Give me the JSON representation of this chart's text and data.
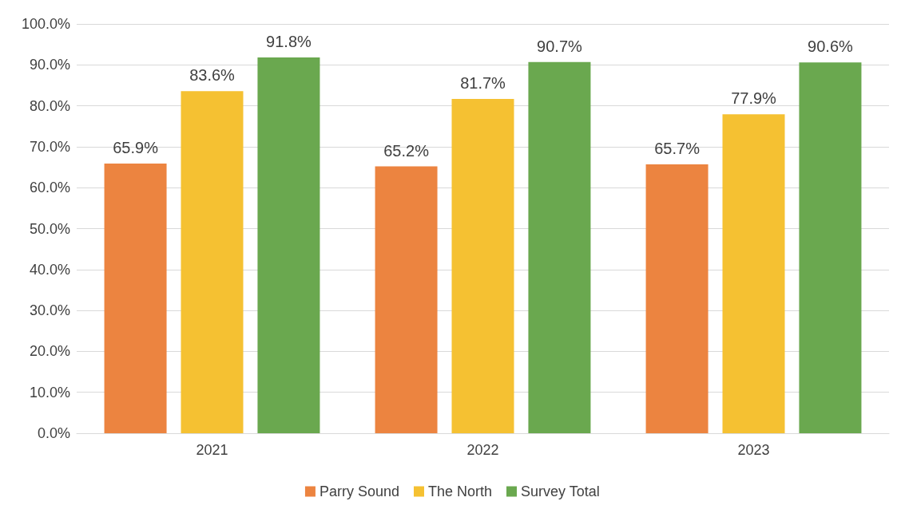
{
  "chart_data": {
    "type": "bar",
    "categories": [
      "2021",
      "2022",
      "2023"
    ],
    "series": [
      {
        "name": "Parry Sound",
        "color": "#ec8440",
        "values": [
          65.9,
          65.2,
          65.7
        ],
        "value_labels": [
          "65.9%",
          "65.2%",
          "65.7%"
        ]
      },
      {
        "name": "The North",
        "color": "#f5c132",
        "values": [
          83.6,
          81.7,
          77.9
        ],
        "value_labels": [
          "83.6%",
          "81.7%",
          "77.9%"
        ]
      },
      {
        "name": "Survey Total",
        "color": "#6aa84f",
        "values": [
          91.8,
          90.7,
          90.6
        ],
        "value_labels": [
          "91.8%",
          "90.7%",
          "90.6%"
        ]
      }
    ],
    "ylim": [
      0,
      100
    ],
    "yticks": [
      {
        "value": 0,
        "label": "0.0%"
      },
      {
        "value": 10,
        "label": "10.0%"
      },
      {
        "value": 20,
        "label": "20.0%"
      },
      {
        "value": 30,
        "label": "30.0%"
      },
      {
        "value": 40,
        "label": "40.0%"
      },
      {
        "value": 50,
        "label": "50.0%"
      },
      {
        "value": 60,
        "label": "60.0%"
      },
      {
        "value": 70,
        "label": "70.0%"
      },
      {
        "value": 80,
        "label": "80.0%"
      },
      {
        "value": 90,
        "label": "90.0%"
      },
      {
        "value": 100,
        "label": "100.0%"
      }
    ],
    "grid": "y",
    "legend": "bottom"
  }
}
